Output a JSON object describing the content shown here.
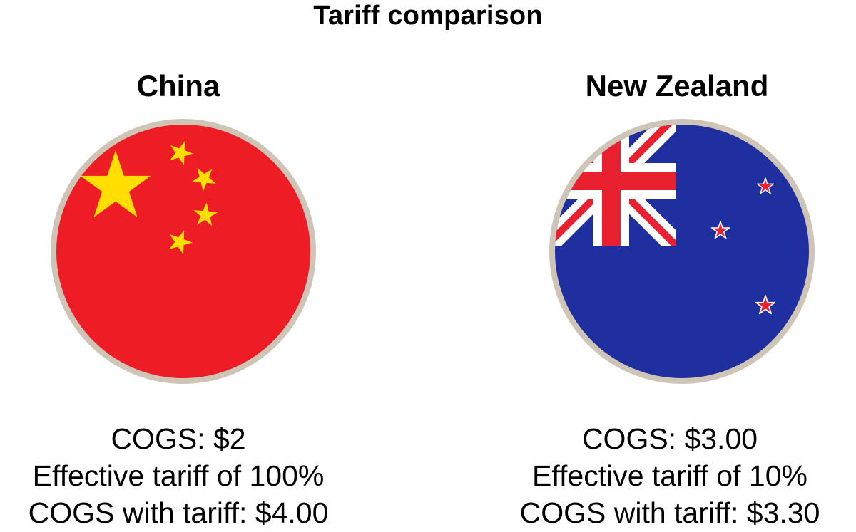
{
  "title": "Tariff comparison",
  "colors": {
    "china_red": "#ee1c25",
    "china_yellow": "#ffde00",
    "nz_blue": "#1f2fa0",
    "nz_red": "#e8202f",
    "white": "#ffffff",
    "border": "#cfc5b6"
  },
  "countries": [
    {
      "name": "China",
      "flag_icon": "china-flag-icon",
      "cogs": "COGS: $2",
      "tariff": "Effective tariff of 100%",
      "cogs_with_tariff": "COGS with tariff: $4.00"
    },
    {
      "name": "New Zealand",
      "flag_icon": "new-zealand-flag-icon",
      "cogs": "COGS: $3.00",
      "tariff": "Effective tariff of 10%",
      "cogs_with_tariff": "COGS with tariff: $3.30"
    }
  ]
}
